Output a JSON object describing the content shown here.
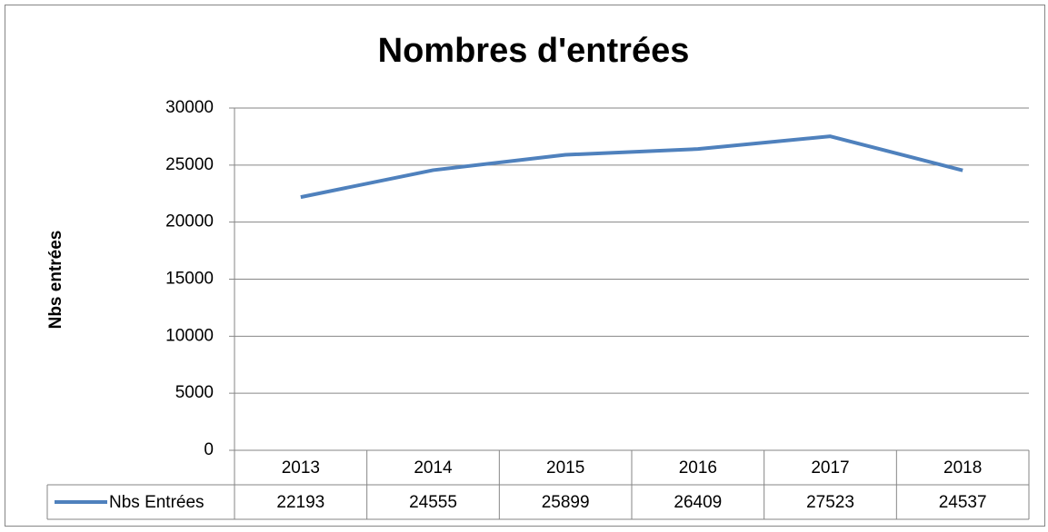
{
  "chart_data": {
    "type": "line",
    "title": "Nombres d'entrées",
    "y_label": "Nbs entrées",
    "categories": [
      "2013",
      "2014",
      "2015",
      "2016",
      "2017",
      "2018"
    ],
    "series": [
      {
        "name": "Nbs Entrées",
        "color": "#4f81bd",
        "values": [
          22193,
          24555,
          25899,
          26409,
          27523,
          24537
        ]
      }
    ],
    "ylim": [
      0,
      30000
    ],
    "yticks": [
      0,
      5000,
      10000,
      15000,
      20000,
      25000,
      30000
    ],
    "grid": true,
    "data_table": true
  }
}
